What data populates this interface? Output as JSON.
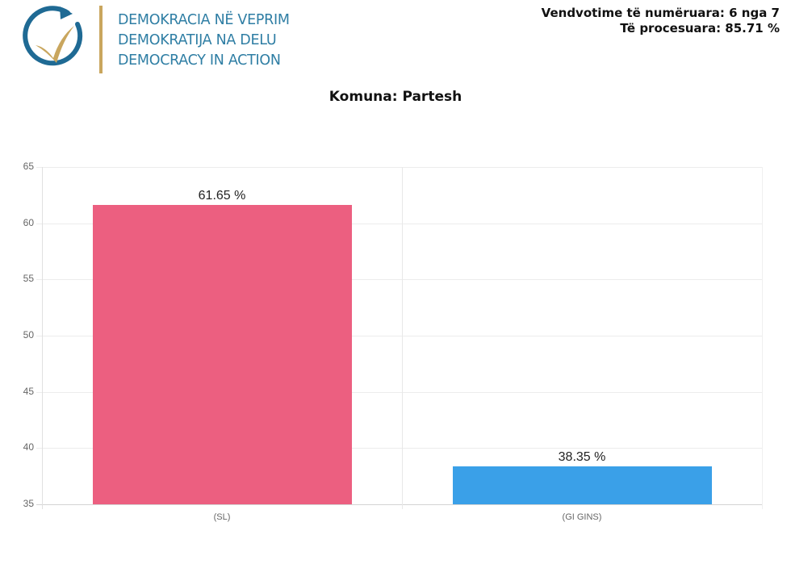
{
  "header": {
    "org_lines": [
      "DEMOKRACIA NË VEPRIM",
      "DEMOKRATIJA NA DELU",
      "DEMOCRACY IN ACTION"
    ],
    "logo_icon": "circular-arrow-checkmark-logo",
    "status_line1": "Vendvotime të numëruara: 6 nga 7",
    "status_line2": "Të procesuara: 85.71 %",
    "colors": {
      "brand_blue": "#2f7ea4",
      "brand_gold": "#c9a65e"
    }
  },
  "chart_data": {
    "type": "bar",
    "title": "Komuna: Partesh",
    "categories": [
      "(SL)",
      "(GI GINS)"
    ],
    "values": [
      61.65,
      38.35
    ],
    "value_labels": [
      "61.65 %",
      "38.35 %"
    ],
    "colors": [
      "#ec5f80",
      "#3aa0e8"
    ],
    "xlabel": "",
    "ylabel": "",
    "ylim": [
      35,
      65
    ],
    "yticks": [
      65,
      60,
      55,
      50,
      45,
      40,
      35
    ],
    "grid": true,
    "legend": "none"
  }
}
